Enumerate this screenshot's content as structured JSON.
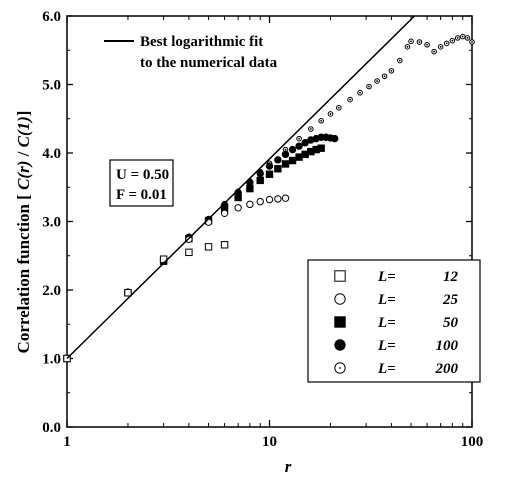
{
  "chart_data": {
    "type": "scatter",
    "title": "",
    "xlabel": "r",
    "ylabel_parts": [
      "Correlation function [ ",
      "C(r)",
      " / ",
      "C(1)",
      "]"
    ],
    "xscale": "log",
    "xlim": [
      1,
      100
    ],
    "ylim": [
      0.0,
      6.0
    ],
    "x_ticks": [
      1,
      10,
      100
    ],
    "x_tick_labels": [
      "1",
      "10",
      "100"
    ],
    "y_ticks": [
      0.0,
      1.0,
      2.0,
      3.0,
      4.0,
      5.0,
      6.0
    ],
    "y_tick_labels": [
      "0.0",
      "1.0",
      "2.0",
      "3.0",
      "4.0",
      "5.0",
      "6.0"
    ],
    "grid": false,
    "fit_line": {
      "name": "Best logarithmic fit",
      "label_lines": [
        "Best logarithmic fit",
        "to the numerical data"
      ],
      "x": [
        1,
        52
      ],
      "y": [
        1.0,
        6.0
      ]
    },
    "parameters": [
      "U = 0.50",
      "F = 0.01"
    ],
    "legend_placement": "bottom-right",
    "series": [
      {
        "name": "L= 12",
        "legend_prefix": "L=",
        "legend_value": "12",
        "marker": "open-square",
        "x": [
          1,
          2,
          3,
          4,
          5,
          6
        ],
        "y": [
          1.0,
          1.96,
          2.45,
          2.55,
          2.63,
          2.66
        ]
      },
      {
        "name": "L= 25",
        "legend_prefix": "L=",
        "legend_value": "25",
        "marker": "open-circle",
        "x": [
          1,
          2,
          3,
          4,
          5,
          6,
          7,
          8,
          9,
          10,
          11,
          12
        ],
        "y": [
          1.0,
          1.97,
          2.43,
          2.74,
          2.99,
          3.12,
          3.2,
          3.25,
          3.29,
          3.32,
          3.33,
          3.34
        ]
      },
      {
        "name": "L= 50",
        "legend_prefix": "L=",
        "legend_value": "50",
        "marker": "filled-square",
        "x": [
          1,
          2,
          3,
          4,
          5,
          6,
          7,
          8,
          9,
          10,
          11,
          12,
          13,
          14,
          15,
          16,
          17,
          18
        ],
        "y": [
          1.0,
          1.96,
          2.42,
          2.75,
          3.01,
          3.2,
          3.35,
          3.48,
          3.6,
          3.69,
          3.77,
          3.84,
          3.89,
          3.94,
          3.98,
          4.02,
          4.05,
          4.07
        ]
      },
      {
        "name": "L= 100",
        "legend_prefix": "L=",
        "legend_value": "100",
        "marker": "filled-circle",
        "x": [
          1,
          2,
          3,
          4,
          5,
          6,
          7,
          8,
          9,
          10,
          11,
          12,
          13,
          14,
          15,
          16,
          17,
          18,
          19,
          20,
          21
        ],
        "y": [
          1.0,
          1.96,
          2.43,
          2.77,
          3.03,
          3.24,
          3.42,
          3.57,
          3.7,
          3.81,
          3.9,
          3.98,
          4.05,
          4.1,
          4.15,
          4.19,
          4.21,
          4.23,
          4.23,
          4.22,
          4.21
        ]
      },
      {
        "name": "L= 200",
        "legend_prefix": "L=",
        "legend_value": "200",
        "marker": "dotted-circle",
        "x": [
          1,
          2,
          3,
          4,
          5,
          6,
          7,
          8,
          9,
          10,
          12,
          14,
          16,
          18,
          20,
          22,
          25,
          28,
          31,
          34,
          37,
          40,
          44,
          48,
          50,
          55,
          60,
          65,
          70,
          75,
          80,
          85,
          90,
          95,
          100
        ],
        "y": [
          1.0,
          1.97,
          2.44,
          2.78,
          3.04,
          3.26,
          3.44,
          3.59,
          3.73,
          3.85,
          4.05,
          4.21,
          4.35,
          4.47,
          4.57,
          4.66,
          4.78,
          4.88,
          4.97,
          5.05,
          5.12,
          5.2,
          5.35,
          5.55,
          5.63,
          5.62,
          5.58,
          5.48,
          5.55,
          5.6,
          5.64,
          5.68,
          5.7,
          5.68,
          5.62
        ]
      }
    ]
  }
}
